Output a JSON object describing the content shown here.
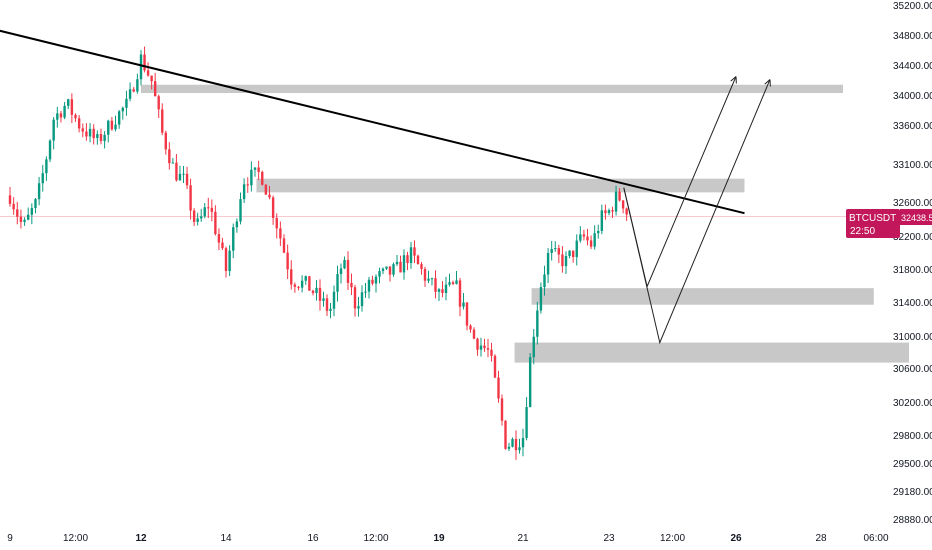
{
  "chart_data": {
    "type": "candlestick",
    "symbol": "BTCUSDT",
    "last_price": "32438.50",
    "countdown": "22:50",
    "colors": {
      "up": "#089981",
      "down": "#f23645",
      "zone": "#c8c8c8",
      "trendline": "#000000",
      "badge": "#c2185b"
    },
    "grid": false,
    "y_ticks": [
      35200,
      34800,
      34400,
      34000,
      33600,
      33100,
      32600,
      32200,
      31800,
      31400,
      31000,
      30600,
      30200,
      29800,
      29500,
      29180,
      28880
    ],
    "y_tick_labels": [
      "35200.00",
      "34800.00",
      "34400.00",
      "34000.00",
      "33600.00",
      "33100.00",
      "32600.00",
      "32200.00",
      "31800.00",
      "31400.00",
      "31000.00",
      "30600.00",
      "30200.00",
      "29800.00",
      "29500.00",
      "29180.00",
      "28880.00"
    ],
    "x_ticks": [
      {
        "label": "9",
        "bold": false
      },
      {
        "label": "12:00",
        "bold": false
      },
      {
        "label": "12",
        "bold": true
      },
      {
        "label": "14",
        "bold": false
      },
      {
        "label": "16",
        "bold": false
      },
      {
        "label": "12:00",
        "bold": false
      },
      {
        "label": "19",
        "bold": true
      },
      {
        "label": "21",
        "bold": false
      },
      {
        "label": "23",
        "bold": false
      },
      {
        "label": "12:00",
        "bold": false
      },
      {
        "label": "26",
        "bold": true
      },
      {
        "label": "28",
        "bold": false
      },
      {
        "label": "06:00",
        "bold": false
      }
    ],
    "x_tick_days": [
      9.0,
      10.5,
      12.0,
      14.0,
      16.0,
      17.5,
      19.0,
      21.0,
      23.0,
      24.5,
      26.0,
      28.0,
      29.25
    ],
    "keypoints": [
      [
        9.0,
        32700
      ],
      [
        9.3,
        32300
      ],
      [
        9.6,
        32600
      ],
      [
        9.8,
        33100
      ],
      [
        10.0,
        33700
      ],
      [
        10.3,
        33900
      ],
      [
        10.6,
        33600
      ],
      [
        11.0,
        33400
      ],
      [
        11.4,
        33700
      ],
      [
        11.7,
        33900
      ],
      [
        12.0,
        34500
      ],
      [
        12.25,
        34200
      ],
      [
        12.5,
        33500
      ],
      [
        12.8,
        33000
      ],
      [
        13.0,
        32900
      ],
      [
        13.3,
        32300
      ],
      [
        13.6,
        32600
      ],
      [
        14.0,
        31800
      ],
      [
        14.4,
        32900
      ],
      [
        14.8,
        33000
      ],
      [
        15.2,
        32300
      ],
      [
        15.5,
        31700
      ],
      [
        15.9,
        31600
      ],
      [
        16.4,
        31300
      ],
      [
        16.7,
        31900
      ],
      [
        17.0,
        31400
      ],
      [
        17.5,
        31700
      ],
      [
        18.0,
        31800
      ],
      [
        18.3,
        32000
      ],
      [
        18.7,
        31700
      ],
      [
        19.0,
        31500
      ],
      [
        19.4,
        31600
      ],
      [
        19.8,
        31000
      ],
      [
        20.2,
        30800
      ],
      [
        20.6,
        29700
      ],
      [
        21.0,
        29800
      ],
      [
        21.2,
        30900
      ],
      [
        21.4,
        31600
      ],
      [
        21.6,
        32000
      ],
      [
        22.0,
        31900
      ],
      [
        22.4,
        32200
      ],
      [
        22.6,
        32100
      ],
      [
        22.8,
        32400
      ],
      [
        23.0,
        32500
      ],
      [
        23.2,
        32700
      ],
      [
        23.35,
        32600
      ],
      [
        23.45,
        32438.5
      ]
    ],
    "resistance_zones": [
      {
        "x0": 12.0,
        "x1": 28.5,
        "p0": 34040,
        "p1": 34150
      },
      {
        "x0": 14.7,
        "x1": 26.2,
        "p0": 32740,
        "p1": 32920
      }
    ],
    "support_zones": [
      {
        "x0": 21.2,
        "x1": 29.2,
        "p0": 31380,
        "p1": 31580
      },
      {
        "x0": 20.8,
        "x1": 30.0,
        "p0": 30680,
        "p1": 30930
      }
    ],
    "trendline": {
      "x0": 6.1,
      "p0": 35250,
      "x1": 26.2,
      "p1": 32480
    },
    "projections": [
      [
        [
          23.35,
          32800
        ],
        [
          23.9,
          31600
        ],
        [
          26.0,
          34260
        ]
      ],
      [
        [
          23.35,
          32800
        ],
        [
          24.2,
          30930
        ],
        [
          26.8,
          34220
        ]
      ]
    ],
    "current_price_line": 32438.5,
    "ylim": [
      28880,
      35200
    ]
  }
}
